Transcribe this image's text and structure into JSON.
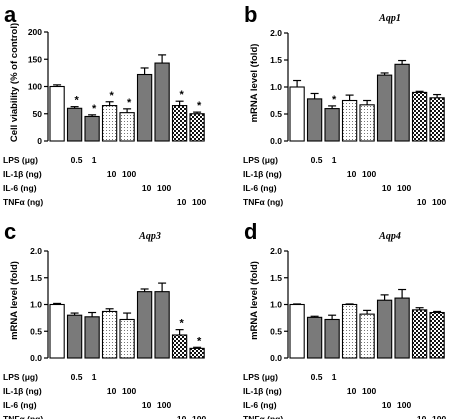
{
  "chart_data": [
    {
      "type": "bar",
      "panel": "a",
      "title": "",
      "ylabel": "Cell viability (% of control)",
      "ylim": [
        0,
        200
      ],
      "yticks": [
        "0",
        "50",
        "100",
        "150",
        "200"
      ],
      "values": [
        100,
        60,
        45,
        65,
        52,
        122,
        143,
        65,
        50
      ],
      "errors": [
        3,
        3,
        3,
        7,
        7,
        12,
        15,
        8,
        3
      ],
      "significant": [
        false,
        true,
        true,
        true,
        true,
        false,
        false,
        true,
        true
      ],
      "fills": [
        "white",
        "gray",
        "gray",
        "dots",
        "dots",
        "gray",
        "gray",
        "check",
        "check"
      ]
    },
    {
      "type": "bar",
      "panel": "b",
      "title": "Aqp1",
      "ylabel": "mRNA level (fold)",
      "ylim": [
        0,
        2.0
      ],
      "yticks": [
        "0.0",
        "0.5",
        "1.0",
        "1.5",
        "2.0"
      ],
      "values": [
        1.0,
        0.78,
        0.6,
        0.75,
        0.67,
        1.22,
        1.42,
        0.9,
        0.8
      ],
      "errors": [
        0.12,
        0.1,
        0.05,
        0.1,
        0.08,
        0.04,
        0.07,
        0.02,
        0.06
      ],
      "significant": [
        false,
        false,
        true,
        false,
        false,
        false,
        false,
        false,
        false
      ],
      "fills": [
        "white",
        "gray",
        "gray",
        "dots",
        "dots",
        "gray",
        "gray",
        "check",
        "check"
      ]
    },
    {
      "type": "bar",
      "panel": "c",
      "title": "Aqp3",
      "ylabel": "mRNA level (fold)",
      "ylim": [
        0,
        2.0
      ],
      "yticks": [
        "0.0",
        "0.5",
        "1.0",
        "1.5",
        "2.0"
      ],
      "values": [
        1.0,
        0.8,
        0.77,
        0.87,
        0.72,
        1.24,
        1.24,
        0.43,
        0.18
      ],
      "errors": [
        0.02,
        0.04,
        0.08,
        0.05,
        0.12,
        0.05,
        0.16,
        0.1,
        0.02
      ],
      "significant": [
        false,
        false,
        false,
        false,
        false,
        false,
        false,
        true,
        true
      ],
      "fills": [
        "white",
        "gray",
        "gray",
        "dots",
        "dots",
        "gray",
        "gray",
        "check",
        "check"
      ]
    },
    {
      "type": "bar",
      "panel": "d",
      "title": "Aqp4",
      "ylabel": "mRNA level (fold)",
      "ylim": [
        0,
        2.0
      ],
      "yticks": [
        "0.0",
        "0.5",
        "1.0",
        "1.5",
        "2.0"
      ],
      "values": [
        1.0,
        0.76,
        0.72,
        1.0,
        0.82,
        1.08,
        1.12,
        0.9,
        0.85
      ],
      "errors": [
        0.01,
        0.02,
        0.08,
        0.01,
        0.07,
        0.1,
        0.16,
        0.04,
        0.02
      ],
      "significant": [
        false,
        false,
        false,
        false,
        false,
        false,
        false,
        false,
        false
      ],
      "fills": [
        "white",
        "gray",
        "gray",
        "dots",
        "dots",
        "gray",
        "gray",
        "check",
        "check"
      ]
    }
  ],
  "treatment_table": {
    "rows": [
      {
        "label": "LPS (μg)",
        "doses": [
          {
            "bar": 1,
            "text": "0.5"
          },
          {
            "bar": 2,
            "text": "1"
          }
        ]
      },
      {
        "label": "IL-1β (ng)",
        "doses": [
          {
            "bar": 3,
            "text": "10"
          },
          {
            "bar": 4,
            "text": "100"
          }
        ]
      },
      {
        "label": "IL-6 (ng)",
        "doses": [
          {
            "bar": 5,
            "text": "10"
          },
          {
            "bar": 6,
            "text": "100"
          }
        ]
      },
      {
        "label": "TNFα (ng)",
        "doses": [
          {
            "bar": 7,
            "text": "10"
          },
          {
            "bar": 8,
            "text": "100"
          }
        ]
      }
    ]
  },
  "significance_marker": "*",
  "colors": {
    "gray": "#7a7a7a",
    "white": "#ffffff",
    "stroke": "#000000"
  }
}
